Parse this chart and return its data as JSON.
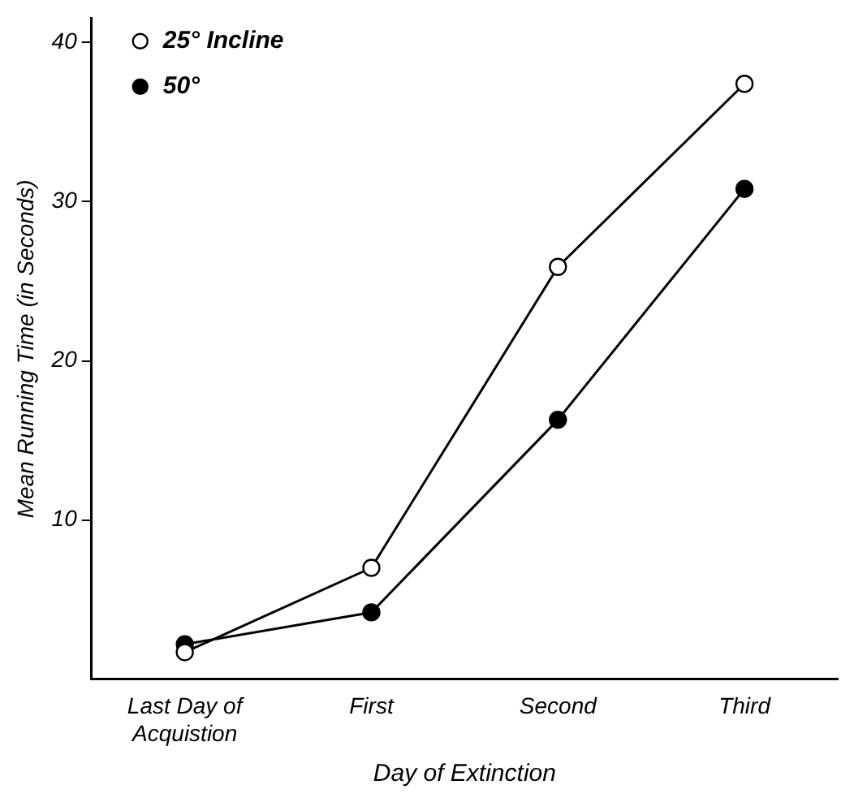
{
  "chart_data": {
    "type": "line",
    "xlabel": "Day of Extinction",
    "ylabel": "Mean Running Time (in Seconds)",
    "categories": [
      "Last Day of Acquistion",
      "First",
      "Second",
      "Third"
    ],
    "series": [
      {
        "name": "25° Incline",
        "color": "#000000",
        "values": [
          1.7,
          7.0,
          25.9,
          37.4
        ]
      },
      {
        "name": "50°",
        "color": "#000000",
        "values": [
          2.2,
          4.2,
          16.3,
          30.8
        ]
      }
    ],
    "ylim": [
      0,
      41.5
    ],
    "yticks": [
      10,
      20,
      30,
      40
    ],
    "grid": false,
    "legend": "top left",
    "marker": "circle",
    "line_style": "solid"
  }
}
